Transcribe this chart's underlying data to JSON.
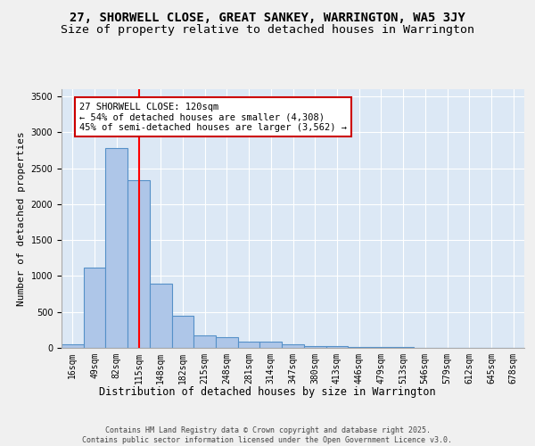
{
  "title": "27, SHORWELL CLOSE, GREAT SANKEY, WARRINGTON, WA5 3JY",
  "subtitle": "Size of property relative to detached houses in Warrington",
  "xlabel": "Distribution of detached houses by size in Warrington",
  "ylabel": "Number of detached properties",
  "categories": [
    "16sqm",
    "49sqm",
    "82sqm",
    "115sqm",
    "148sqm",
    "182sqm",
    "215sqm",
    "248sqm",
    "281sqm",
    "314sqm",
    "347sqm",
    "380sqm",
    "413sqm",
    "446sqm",
    "479sqm",
    "513sqm",
    "546sqm",
    "579sqm",
    "612sqm",
    "645sqm",
    "678sqm"
  ],
  "values": [
    50,
    1120,
    2780,
    2340,
    900,
    450,
    170,
    150,
    90,
    85,
    50,
    30,
    20,
    15,
    10,
    8,
    5,
    5,
    4,
    3,
    3
  ],
  "bar_color": "#aec6e8",
  "bar_edge_color": "#5590c8",
  "bar_edge_width": 0.8,
  "red_line_x": 3.0,
  "annotation_title": "27 SHORWELL CLOSE: 120sqm",
  "annotation_line1": "← 54% of detached houses are smaller (4,308)",
  "annotation_line2": "45% of semi-detached houses are larger (3,562) →",
  "annotation_box_color": "#ffffff",
  "annotation_box_edge_color": "#cc0000",
  "background_color": "#dce8f5",
  "fig_background_color": "#f0f0f0",
  "grid_color": "#ffffff",
  "title_fontsize": 10,
  "subtitle_fontsize": 9.5,
  "xlabel_fontsize": 8.5,
  "ylabel_fontsize": 8,
  "tick_fontsize": 7,
  "annotation_fontsize": 7.5,
  "footer_line1": "Contains HM Land Registry data © Crown copyright and database right 2025.",
  "footer_line2": "Contains public sector information licensed under the Open Government Licence v3.0.",
  "ylim": [
    0,
    3600
  ]
}
